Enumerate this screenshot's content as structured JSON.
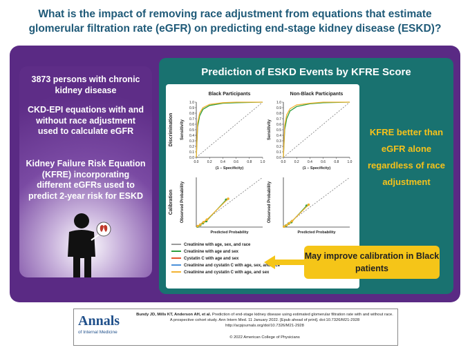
{
  "header": {
    "title": "What is the impact of removing race adjustment from equations that estimate glomerular filtration rate (eGFR) on predicting end-stage kidney disease (ESKD)?"
  },
  "left_panel": {
    "items": [
      "3873 persons with chronic kidney disease",
      "CKD-EPI equations with and without race adjustment used to calculate eGFR",
      "Kidney Failure Risk Equation (KFRE) incorporating different eGFRs used to predict 2-year risk for ESKD"
    ]
  },
  "main_panel": {
    "title": "Prediction of ESKD Events by KFRE Score",
    "conclusion": "KFRE better than eGFR alone regardless of race adjustment",
    "callout": "May improve calibration in Black patients"
  },
  "charts": {
    "column_titles": [
      "Black Participants",
      "Non-Black Participants"
    ],
    "xlim": [
      0,
      1
    ],
    "ylim": [
      0,
      1
    ],
    "discrimination": {
      "label": "Discrimination",
      "x_label": "(1 – Specificity)",
      "y_label": "Sensitivity",
      "xticks": [
        {
          "value": 0,
          "label": "0.0"
        },
        {
          "value": 0.2,
          "label": "0.2"
        },
        {
          "value": 0.4,
          "label": "0.4"
        },
        {
          "value": 0.6,
          "label": "0.6"
        },
        {
          "value": 0.8,
          "label": "0.8"
        },
        {
          "value": 1,
          "label": "1.0"
        }
      ],
      "yticks": [
        {
          "value": 0,
          "label": "0.0"
        },
        0.1,
        0.2,
        0.3,
        0.4,
        0.5,
        0.6,
        0.7,
        0.8,
        0.9,
        {
          "value": 1,
          "label": "1.0"
        }
      ],
      "panels": [
        {
          "series": [
            {
              "color": "#2e9e3e",
              "x": [
                0,
                0.02,
                0.05,
                0.1,
                0.2,
                0.4,
                0.6,
                1
              ],
              "y": [
                0,
                0.55,
                0.75,
                0.87,
                0.94,
                0.98,
                0.99,
                1
              ]
            },
            {
              "color": "#f2b230",
              "x": [
                0,
                0.02,
                0.05,
                0.1,
                0.2,
                0.4,
                0.6,
                1
              ],
              "y": [
                0,
                0.62,
                0.8,
                0.9,
                0.96,
                0.99,
                1,
                1
              ]
            }
          ]
        },
        {
          "series": [
            {
              "color": "#2e9e3e",
              "x": [
                0,
                0.02,
                0.05,
                0.1,
                0.2,
                0.4,
                0.6,
                1
              ],
              "y": [
                0,
                0.5,
                0.7,
                0.84,
                0.92,
                0.97,
                0.99,
                1
              ]
            },
            {
              "color": "#f2b230",
              "x": [
                0,
                0.02,
                0.05,
                0.1,
                0.2,
                0.4,
                0.6,
                1
              ],
              "y": [
                0,
                0.58,
                0.77,
                0.88,
                0.95,
                0.98,
                1,
                1
              ]
            }
          ]
        }
      ]
    },
    "calibration": {
      "label": "Calibration",
      "x_label": "Predicted Probability",
      "y_label": "Observed Probability",
      "panels": [
        {
          "series": [
            {
              "color": "#2e9e3e",
              "x": [
                0.02,
                0.06,
                0.1,
                0.15,
                0.45
              ],
              "y": [
                0.01,
                0.04,
                0.08,
                0.12,
                0.55
              ]
            },
            {
              "color": "#f2b230",
              "x": [
                0.02,
                0.06,
                0.11,
                0.16,
                0.48
              ],
              "y": [
                0.02,
                0.05,
                0.1,
                0.15,
                0.57
              ]
            }
          ]
        },
        {
          "series": [
            {
              "color": "#2e9e3e",
              "x": [
                0.01,
                0.04,
                0.08,
                0.12,
                0.35
              ],
              "y": [
                0.01,
                0.03,
                0.07,
                0.1,
                0.43
              ]
            },
            {
              "color": "#f2b230",
              "x": [
                0.01,
                0.05,
                0.09,
                0.13,
                0.38
              ],
              "y": [
                0.01,
                0.04,
                0.08,
                0.12,
                0.45
              ]
            }
          ]
        }
      ]
    },
    "legend": [
      {
        "name": "Creatinine with age, sex, and race",
        "color": "#9a9a9a"
      },
      {
        "name": "Creatinine with age and sex",
        "color": "#2e9e3e"
      },
      {
        "name": "Cystatin C with age and sex",
        "color": "#e5532b"
      },
      {
        "name": "Creatinine and cystatin C with age, sex, and race",
        "color": "#4a90d9"
      },
      {
        "name": "Creatinine and cystatin C with age, and sex",
        "color": "#f2b230"
      }
    ]
  },
  "citation": {
    "logo": "Annals",
    "logo_sub": "of Internal Medicine",
    "authors": "Bundy JD, Mills KT, Anderson AH, et al.",
    "reference": "Prediction of end-stage kidney disease using estimated glomerular filtration rate with and without race. A prospective cohort study. Ann Intern Med. 11 January 2022. [Epub ahead of print]. doi:10.7326/M21-2928",
    "url": "http://acpjournals.org/doi/10.7326/M21-2928",
    "copyright": "© 2022 American College of Physicians"
  }
}
